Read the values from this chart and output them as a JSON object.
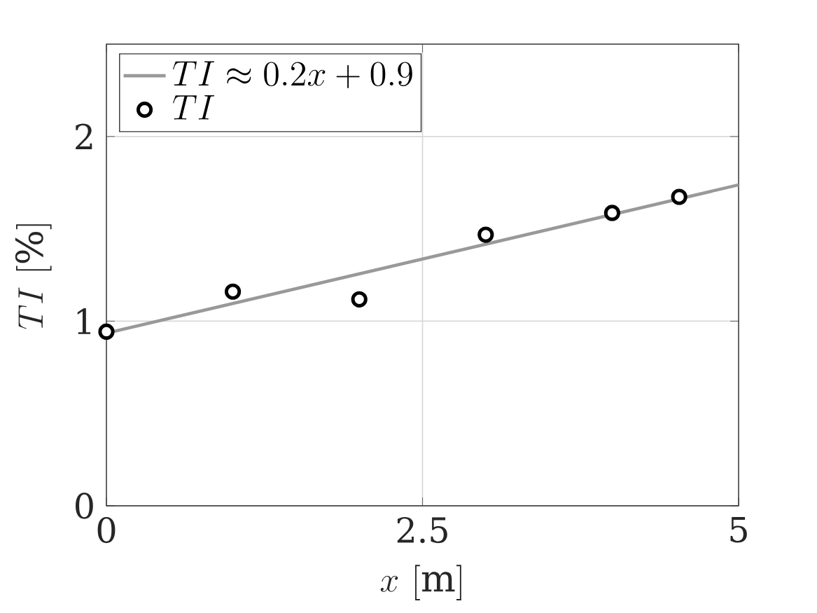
{
  "chart_data": {
    "type": "scatter",
    "xlabel": "x~[\\mathrm{m}]",
    "ylabel": "TI~[\\%]",
    "xlim": [
      0,
      5
    ],
    "xticks": [
      0,
      2.5,
      5
    ],
    "ylim": [
      0,
      2.5
    ],
    "yticks": [
      0,
      1,
      2
    ],
    "grid": true,
    "legend": "top left",
    "series": [
      {
        "type": "line",
        "name": "TI \\approx 0.2x + 0.9",
        "color": "#999999",
        "x": [
          0,
          5
        ],
        "values": [
          0.935,
          1.738
        ],
        "line_style": "solid",
        "marker": "none"
      },
      {
        "name": "TI",
        "color": "#000000",
        "x": [
          0,
          1,
          2,
          3,
          4,
          4.53
        ],
        "values": [
          0.943,
          1.16,
          1.118,
          1.468,
          1.586,
          1.673
        ],
        "marker": "circle"
      }
    ]
  }
}
